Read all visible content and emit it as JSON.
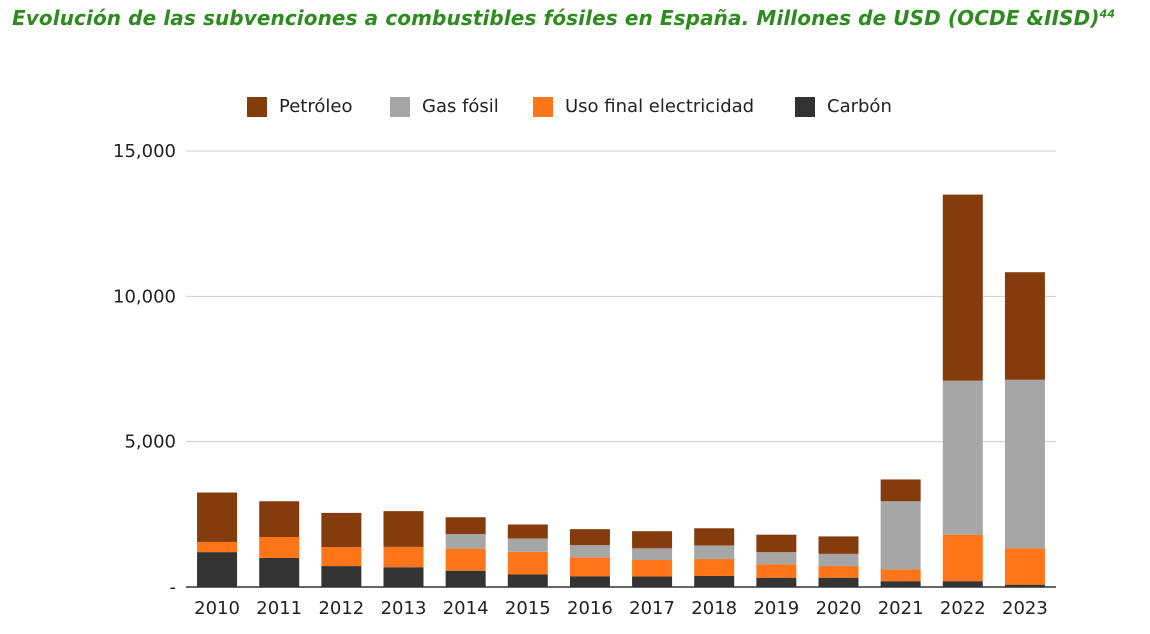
{
  "title": "Evolución de las subvenciones a combustibles fósiles en España. Millones de USD (OCDE &IISD)",
  "title_superscript": "44",
  "chart_data": {
    "type": "bar",
    "stacked": true,
    "title": "Evolución de las subvenciones a combustibles fósiles en España. Millones de USD (OCDE &IISD)",
    "xlabel": "",
    "ylabel": "",
    "ylim": [
      0,
      15000
    ],
    "yticks": [
      0,
      5000,
      10000,
      15000
    ],
    "ytick_labels": [
      "-",
      "5,000",
      "10,000",
      "15,000"
    ],
    "grid": true,
    "legend_position": "top",
    "categories": [
      "2010",
      "2011",
      "2012",
      "2013",
      "2014",
      "2015",
      "2016",
      "2017",
      "2018",
      "2019",
      "2020",
      "2021",
      "2022",
      "2023"
    ],
    "series": [
      {
        "name": "Carbón",
        "color": "#333333",
        "values": [
          1200,
          1000,
          720,
          680,
          560,
          430,
          370,
          360,
          380,
          320,
          320,
          200,
          200,
          80
        ]
      },
      {
        "name": "Uso final electricidad",
        "color": "#ff7518",
        "values": [
          350,
          720,
          650,
          700,
          760,
          780,
          650,
          570,
          580,
          460,
          400,
          400,
          1600,
          1250
        ]
      },
      {
        "name": "Gas fósil",
        "color": "#a6a6a6",
        "values": [
          0,
          0,
          0,
          0,
          500,
          460,
          420,
          400,
          470,
          420,
          420,
          2350,
          5300,
          5800
        ]
      },
      {
        "name": "Petróleo",
        "color": "#843c0c",
        "values": [
          1700,
          1230,
          1180,
          1230,
          580,
          480,
          550,
          590,
          590,
          600,
          600,
          750,
          6400,
          3700
        ]
      }
    ]
  },
  "legend": [
    {
      "label": "Petróleo",
      "color": "#843c0c"
    },
    {
      "label": "Gas fósil",
      "color": "#a6a6a6"
    },
    {
      "label": "Uso final electricidad",
      "color": "#ff7518"
    },
    {
      "label": "Carbón",
      "color": "#333333"
    }
  ]
}
